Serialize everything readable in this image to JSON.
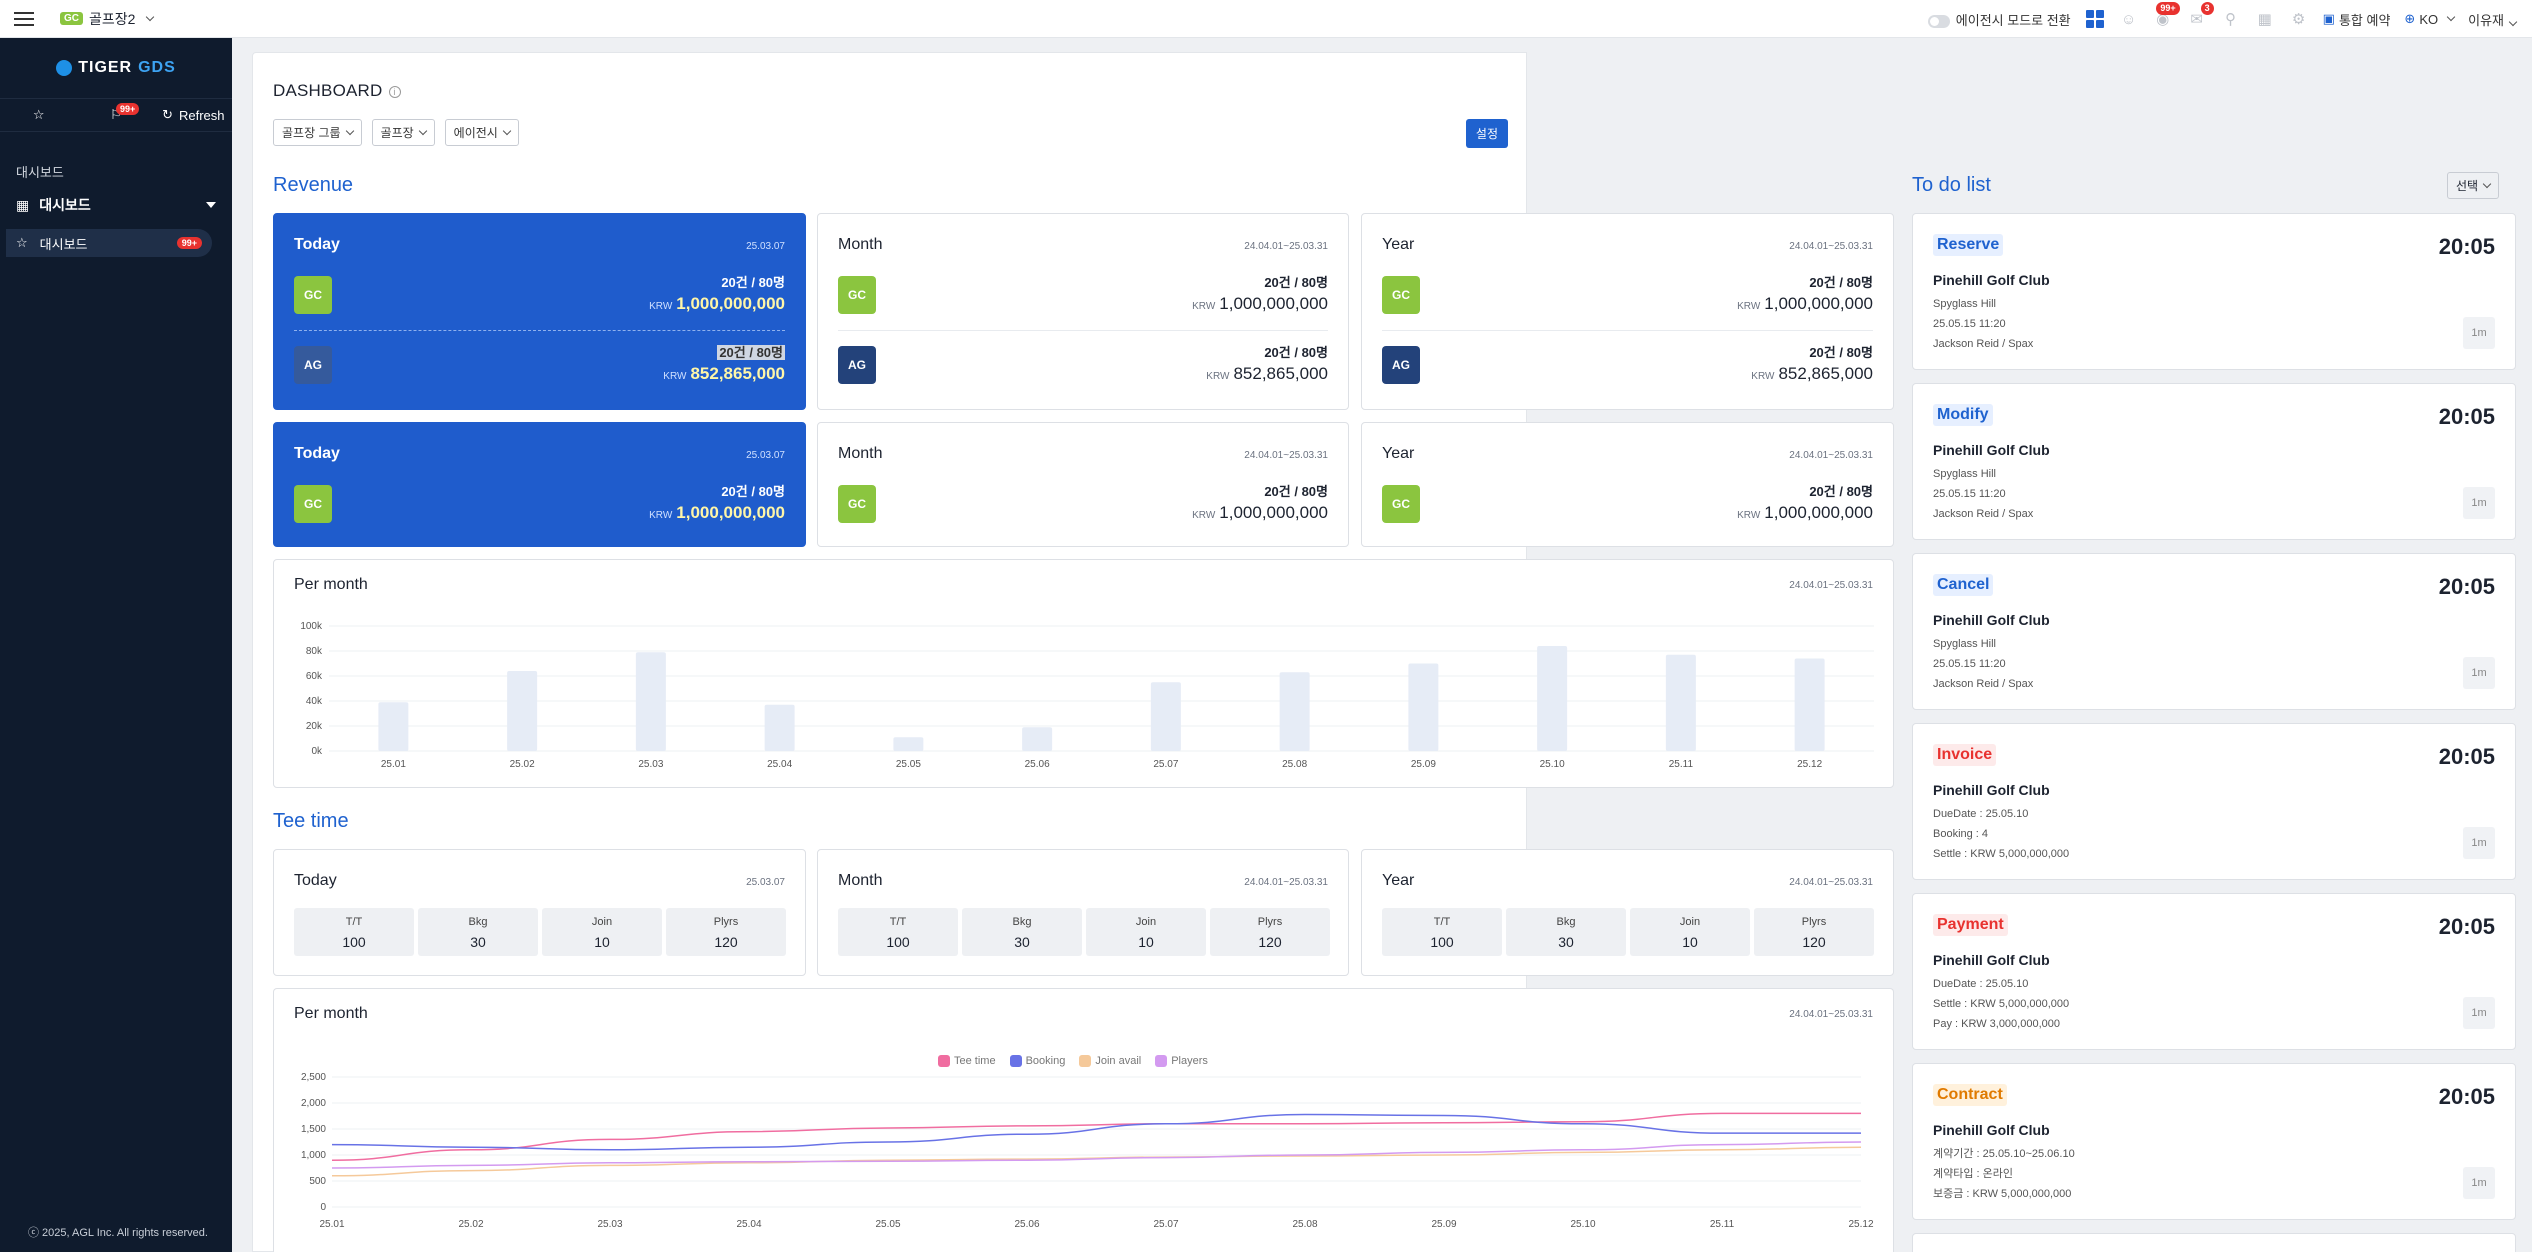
{
  "topbar": {
    "club_badge": "GC",
    "club_name": "골프장2",
    "mode_switch": "에이전시 모드로 전환",
    "badge_notice": "99+",
    "badge_msg": "3",
    "reservation": "통합 예약",
    "language": "KO",
    "user": "이유재"
  },
  "sidebar": {
    "logo_a": "TIGER",
    "logo_b": "GDS",
    "badge": "99+",
    "refresh": "Refresh",
    "section": "대시보드",
    "menu": "대시보드",
    "active_item": "대시보드",
    "active_badge": "99+",
    "copyright": "ⓒ 2025, AGL Inc. All rights reserved."
  },
  "dashboard": {
    "title": "DASHBOARD",
    "filters": [
      "골프장 그룹",
      "골프장",
      "에이전시"
    ],
    "settings": "설정"
  },
  "revenue": {
    "title": "Revenue",
    "cards": [
      {
        "label": "Today",
        "date": "25.03.07",
        "gc_count": "20건 / 80명",
        "gc_cur": "KRW",
        "gc_amount": "1,000,000,000",
        "ag_count": "20건 / 80명",
        "ag_cur": "KRW",
        "ag_amount": "852,865,000"
      },
      {
        "label": "Month",
        "date": "24.04.01~25.03.31",
        "gc_count": "20건 / 80명",
        "gc_cur": "KRW",
        "gc_amount": "1,000,000,000",
        "ag_count": "20건 / 80명",
        "ag_cur": "KRW",
        "ag_amount": "852,865,000"
      },
      {
        "label": "Year",
        "date": "24.04.01~25.03.31",
        "gc_count": "20건 / 80명",
        "gc_cur": "KRW",
        "gc_amount": "1,000,000,000",
        "ag_count": "20건 / 80명",
        "ag_cur": "KRW",
        "ag_amount": "852,865,000"
      }
    ],
    "cards2": [
      {
        "label": "Today",
        "date": "25.03.07",
        "gc_count": "20건 / 80명",
        "gc_cur": "KRW",
        "gc_amount": "1,000,000,000"
      },
      {
        "label": "Month",
        "date": "24.04.01~25.03.31",
        "gc_count": "20건 / 80명",
        "gc_cur": "KRW",
        "gc_amount": "1,000,000,000"
      },
      {
        "label": "Year",
        "date": "24.04.01~25.03.31",
        "gc_count": "20건 / 80명",
        "gc_cur": "KRW",
        "gc_amount": "1,000,000,000"
      }
    ],
    "badge_gc": "GC",
    "badge_ag": "AG",
    "per_month": "Per month",
    "per_month_date": "24.04.01~25.03.31"
  },
  "teetime": {
    "title": "Tee time",
    "cards": [
      {
        "label": "Today",
        "date": "25.03.07"
      },
      {
        "label": "Month",
        "date": "24.04.01~25.03.31"
      },
      {
        "label": "Year",
        "date": "24.04.01~25.03.31"
      }
    ],
    "stats": [
      {
        "label": "T/T",
        "value": "100"
      },
      {
        "label": "Bkg",
        "value": "30"
      },
      {
        "label": "Join",
        "value": "10"
      },
      {
        "label": "Plyrs",
        "value": "120"
      }
    ],
    "per_month": "Per month",
    "per_month_date": "24.04.01~25.03.31"
  },
  "todo": {
    "title": "To do list",
    "select": "선택",
    "items": [
      {
        "tag": "Reserve",
        "time": "20:05",
        "club": "Pinehill Golf Club",
        "lines": [
          "Spyglass Hill",
          "25.05.15 11:20",
          "Jackson Reid / Spax"
        ],
        "ago": "1m",
        "color": "#1f62cf",
        "bg": "#e6efff"
      },
      {
        "tag": "Modify",
        "time": "20:05",
        "club": "Pinehill Golf Club",
        "lines": [
          "Spyglass Hill",
          "25.05.15 11:20",
          "Jackson Reid / Spax"
        ],
        "ago": "1m",
        "color": "#1f62cf",
        "bg": "#e6efff"
      },
      {
        "tag": "Cancel",
        "time": "20:05",
        "club": "Pinehill Golf Club",
        "lines": [
          "Spyglass Hill",
          "25.05.15 11:20",
          "Jackson Reid / Spax"
        ],
        "ago": "1m",
        "color": "#1f62cf",
        "bg": "#e6efff"
      },
      {
        "tag": "Invoice",
        "time": "20:05",
        "club": "Pinehill Golf Club",
        "lines": [
          "DueDate : 25.05.10",
          "Booking : 4",
          "Settle : KRW 5,000,000,000"
        ],
        "ago": "1m",
        "color": "#e8322f",
        "bg": "#fdeaea"
      },
      {
        "tag": "Payment",
        "time": "20:05",
        "club": "Pinehill Golf Club",
        "lines": [
          "DueDate : 25.05.10",
          "Settle : KRW 5,000,000,000",
          "Pay : KRW 3,000,000,000"
        ],
        "ago": "1m",
        "color": "#e8322f",
        "bg": "#fdeaea"
      },
      {
        "tag": "Contract",
        "time": "20:05",
        "club": "Pinehill Golf Club",
        "lines": [
          "계약기간 : 25.05.10~25.06.10",
          "계약타입 : 온라인",
          "보증금 : KRW 5,000,000,000"
        ],
        "ago": "1m",
        "color": "#e07a00",
        "bg": "#fff1dc"
      }
    ]
  },
  "chart_data": [
    {
      "type": "bar",
      "title": "Per month",
      "categories": [
        "25.01",
        "25.02",
        "25.03",
        "25.04",
        "25.05",
        "25.06",
        "25.07",
        "25.08",
        "25.09",
        "25.10",
        "25.11",
        "25.12"
      ],
      "values": [
        39000,
        64000,
        79000,
        37000,
        11000,
        19000,
        55000,
        63000,
        70000,
        84000,
        77000,
        74000
      ],
      "yticks": [
        "100k",
        "80k",
        "60k",
        "40k",
        "20k",
        "0k"
      ],
      "ylim": [
        0,
        100000
      ],
      "color": "#e6ecf6"
    },
    {
      "type": "line",
      "title": "Per month",
      "categories": [
        "25.01",
        "25.02",
        "25.03",
        "25.04",
        "25.05",
        "25.06",
        "25.07",
        "25.08",
        "25.09",
        "25.10",
        "25.11",
        "25.12"
      ],
      "yticks": [
        "2,500",
        "2,000",
        "1,500",
        "1,000",
        "500",
        "0"
      ],
      "ylim": [
        0,
        2500
      ],
      "series": [
        {
          "name": "Tee time",
          "color": "#f06da0",
          "values": [
            900,
            1100,
            1300,
            1450,
            1520,
            1560,
            1600,
            1600,
            1620,
            1640,
            1800,
            1800
          ]
        },
        {
          "name": "Booking",
          "color": "#6872e6",
          "values": [
            1200,
            1150,
            1100,
            1150,
            1250,
            1400,
            1600,
            1780,
            1760,
            1600,
            1420,
            1420
          ]
        },
        {
          "name": "Join avail",
          "color": "#f5c99a",
          "values": [
            600,
            700,
            800,
            850,
            900,
            920,
            960,
            980,
            1000,
            1050,
            1100,
            1150
          ]
        },
        {
          "name": "Players",
          "color": "#d39af0",
          "values": [
            750,
            800,
            850,
            870,
            880,
            900,
            950,
            1000,
            1050,
            1100,
            1200,
            1250
          ]
        }
      ]
    }
  ]
}
